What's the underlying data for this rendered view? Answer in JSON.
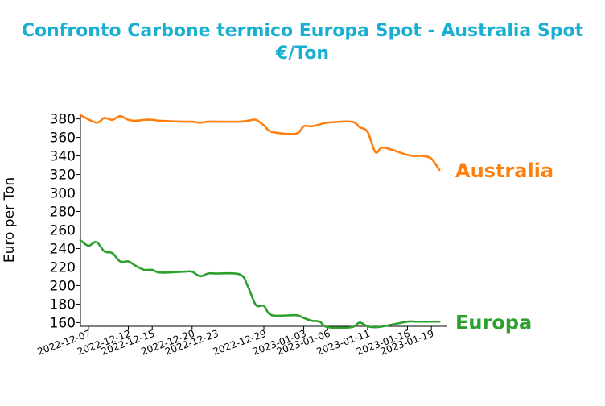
{
  "chart_data": {
    "type": "line",
    "title": "Confronto Carbone termico Europa Spot - Australia Spot",
    "subtitle": "€/Ton",
    "xlabel": "",
    "ylabel": "Euro per Ton",
    "ylim": [
      156,
      384
    ],
    "yticks": [
      160,
      180,
      200,
      220,
      240,
      260,
      280,
      300,
      320,
      340,
      360,
      380
    ],
    "xlim": [
      "2022-12-06",
      "2023-01-21"
    ],
    "xticks": [
      "2022-12-07",
      "2022-12-12",
      "2022-12-15",
      "2022-12-20",
      "2022-12-23",
      "2022-12-29",
      "2023-01-03",
      "2023-01-06",
      "2023-01-11",
      "2023-01-16",
      "2023-01-19"
    ],
    "grid": false,
    "legend": "none",
    "series": [
      {
        "name": "Australia",
        "color": "#ff7f0e",
        "x": [
          "2022-12-06",
          "2022-12-08",
          "2022-12-09",
          "2022-12-10",
          "2022-12-11",
          "2022-12-12",
          "2022-12-13",
          "2022-12-14",
          "2022-12-15",
          "2022-12-16",
          "2022-12-19",
          "2022-12-20",
          "2022-12-21",
          "2022-12-22",
          "2022-12-23",
          "2022-12-26",
          "2022-12-27",
          "2022-12-28",
          "2022-12-29",
          "2022-12-30",
          "2023-01-02",
          "2023-01-03",
          "2023-01-04",
          "2023-01-05",
          "2023-01-06",
          "2023-01-09",
          "2023-01-10",
          "2023-01-11",
          "2023-01-12",
          "2023-01-13",
          "2023-01-16",
          "2023-01-17",
          "2023-01-18",
          "2023-01-19",
          "2023-01-20"
        ],
        "values": [
          384,
          376,
          381,
          379,
          383,
          379,
          378,
          379,
          379,
          378,
          377,
          377,
          376,
          377,
          377,
          377,
          378,
          379,
          373,
          366,
          364,
          372,
          372,
          374,
          376,
          377,
          371,
          366,
          344,
          349,
          341,
          340,
          340,
          337,
          325
        ]
      },
      {
        "name": "Europa",
        "color": "#2ca02c",
        "x": [
          "2022-12-06",
          "2022-12-07",
          "2022-12-08",
          "2022-12-09",
          "2022-12-10",
          "2022-12-11",
          "2022-12-12",
          "2022-12-13",
          "2022-12-14",
          "2022-12-15",
          "2022-12-16",
          "2022-12-19",
          "2022-12-20",
          "2022-12-21",
          "2022-12-22",
          "2022-12-23",
          "2022-12-26",
          "2022-12-27",
          "2022-12-28",
          "2022-12-29",
          "2022-12-30",
          "2023-01-02",
          "2023-01-03",
          "2023-01-04",
          "2023-01-05",
          "2023-01-06",
          "2023-01-09",
          "2023-01-10",
          "2023-01-11",
          "2023-01-12",
          "2023-01-13",
          "2023-01-16",
          "2023-01-17",
          "2023-01-18",
          "2023-01-19",
          "2023-01-20"
        ],
        "values": [
          249,
          243,
          247,
          237,
          235,
          226,
          226,
          221,
          217,
          217,
          214,
          215,
          215,
          210,
          213,
          213,
          212,
          199,
          179,
          178,
          168,
          168,
          165,
          162,
          161,
          155,
          155,
          160,
          156,
          155,
          156,
          161,
          161,
          161,
          161,
          161
        ]
      }
    ]
  }
}
